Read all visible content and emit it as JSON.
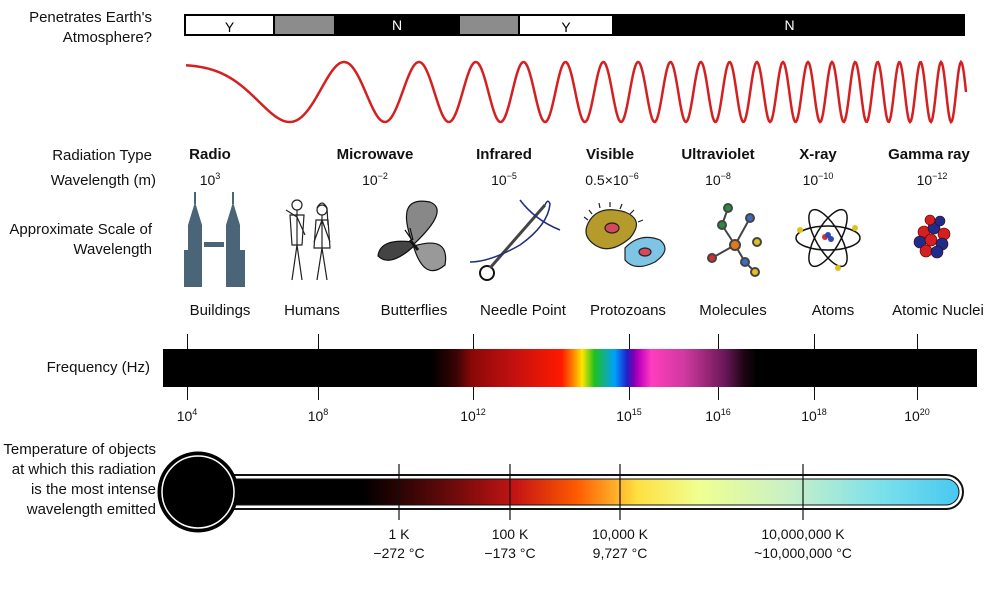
{
  "labels": {
    "penetrates": "Penetrates Earth's Atmosphere?",
    "radiation_type": "Radiation Type",
    "wavelength": "Wavelength (m)",
    "scale": "Approximate Scale of Wavelength",
    "frequency": "Frequency (Hz)",
    "temperature": "Temperature of objects at which this radiation is the most intense wavelength emitted"
  },
  "penetration_bar": [
    {
      "label": "Y",
      "color": "#ffffff"
    },
    {
      "label": "",
      "color": "#8c8c8c"
    },
    {
      "label": "N",
      "color": "#000000"
    },
    {
      "label": "",
      "color": "#8c8c8c"
    },
    {
      "label": "Y",
      "color": "#ffffff"
    },
    {
      "label": "N",
      "color": "#000000"
    }
  ],
  "radiation_types": [
    {
      "name": "Radio",
      "wavelength_base": "10",
      "wavelength_exp": "3"
    },
    {
      "name": "Microwave",
      "wavelength_base": "10",
      "wavelength_exp": "−2"
    },
    {
      "name": "Infrared",
      "wavelength_base": "10",
      "wavelength_exp": "−5"
    },
    {
      "name": "Visible",
      "wavelength_base": "0.5×10",
      "wavelength_exp": "−6"
    },
    {
      "name": "Ultraviolet",
      "wavelength_base": "10",
      "wavelength_exp": "−8"
    },
    {
      "name": "X-ray",
      "wavelength_base": "10",
      "wavelength_exp": "−10"
    },
    {
      "name": "Gamma ray",
      "wavelength_base": "10",
      "wavelength_exp": "−12"
    }
  ],
  "scale_objects": [
    "Buildings",
    "Humans",
    "Butterflies",
    "Needle Point",
    "Protozoans",
    "Molecules",
    "Atoms",
    "Atomic Nuclei"
  ],
  "scale_icons": [
    "buildings-icon",
    "humans-icon",
    "butterfly-icon",
    "needle-icon",
    "protozoan-icon",
    "molecule-icon",
    "atom-icon",
    "nucleus-icon"
  ],
  "frequency_ticks": [
    {
      "base": "10",
      "exp": "4"
    },
    {
      "base": "10",
      "exp": "8"
    },
    {
      "base": "10",
      "exp": "12"
    },
    {
      "base": "10",
      "exp": "15"
    },
    {
      "base": "10",
      "exp": "16"
    },
    {
      "base": "10",
      "exp": "18"
    },
    {
      "base": "10",
      "exp": "20"
    }
  ],
  "temperature_ticks": [
    {
      "kelvin": "1 K",
      "celsius": "−272 °C"
    },
    {
      "kelvin": "100 K",
      "celsius": "−173 °C"
    },
    {
      "kelvin": "10,000 K",
      "celsius": "9,727 °C"
    },
    {
      "kelvin": "10,000,000 K",
      "celsius": "~10,000,000 °C"
    }
  ],
  "colors": {
    "wave": "#d42020",
    "text": "#111111",
    "bar": "#000000"
  }
}
